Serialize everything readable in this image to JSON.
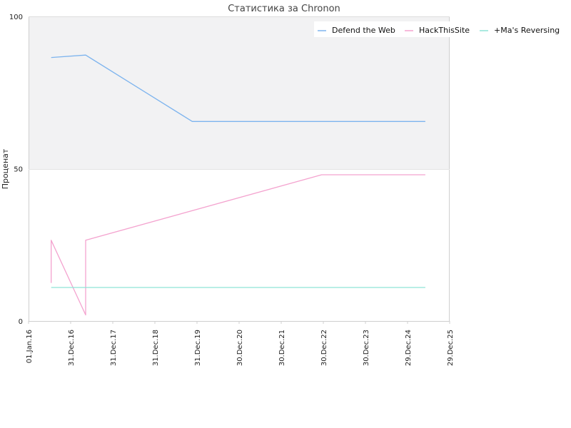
{
  "chart_data": {
    "type": "line",
    "title": "Статистика за Chronon",
    "xlabel": "",
    "ylabel": "Проценат",
    "ylim": [
      0,
      100
    ],
    "yticks": [
      "0",
      "50",
      "100"
    ],
    "xlim": [
      "2016-01-01",
      "2025-12-29"
    ],
    "xticks": [
      "01.Jan.16",
      "31.Dec.16",
      "31.Dec.17",
      "31.Dec.18",
      "31.Dec.19",
      "30.Dec.20",
      "30.Dec.21",
      "30.Dec.22",
      "30.Dec.23",
      "29.Dec.24",
      "29.Dec.25"
    ],
    "upper_band_shaded": true,
    "legend_position": "top-right",
    "series": [
      {
        "name": "Defend the Web",
        "color": "#7db4ee",
        "points": [
          [
            "2016-07-15",
            86.5
          ],
          [
            "2017-05-10",
            87.3
          ],
          [
            "2019-11-20",
            65.5
          ],
          [
            "2025-06-01",
            65.5
          ]
        ]
      },
      {
        "name": "HackThisSite",
        "color": "#f4a3cf",
        "points": [
          [
            "2016-07-15",
            12.5
          ],
          [
            "2016-07-15",
            26.5
          ],
          [
            "2017-05-10",
            2
          ],
          [
            "2017-05-10",
            26.5
          ],
          [
            "2022-12-15",
            48
          ],
          [
            "2025-06-01",
            48
          ]
        ]
      },
      {
        "name": "+Ma's Reversing",
        "color": "#8fe3d6",
        "points": [
          [
            "2016-07-15",
            11
          ],
          [
            "2025-06-01",
            11
          ]
        ]
      }
    ]
  }
}
